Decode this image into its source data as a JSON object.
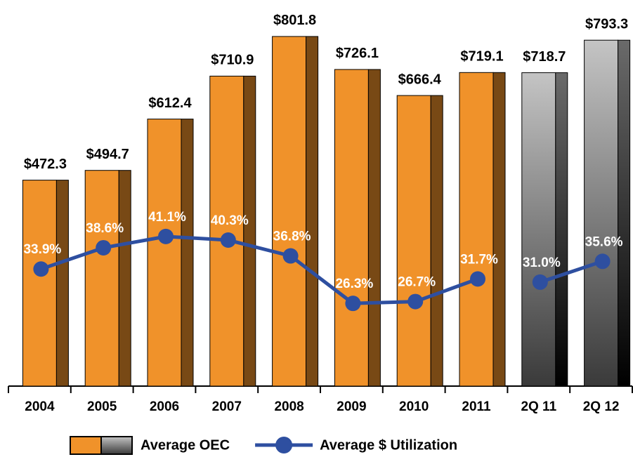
{
  "chart_data": {
    "type": "bar",
    "categories": [
      "2004",
      "2005",
      "2006",
      "2007",
      "2008",
      "2009",
      "2010",
      "2011",
      "2Q 11",
      "2Q 12"
    ],
    "ylim": [
      0,
      850
    ],
    "y2lim": [
      8,
      90
    ],
    "series": [
      {
        "name": "Average OEC",
        "type": "bar",
        "colors": [
          "#f0922a",
          "#f0922a",
          "#f0922a",
          "#f0922a",
          "#f0922a",
          "#f0922a",
          "#f0922a",
          "#f0922a",
          "#a6a6a6",
          "#a6a6a6"
        ],
        "values": [
          472.3,
          494.7,
          612.4,
          710.9,
          801.8,
          726.1,
          666.4,
          719.1,
          718.7,
          793.3
        ],
        "value_labels": [
          "$472.3",
          "$494.7",
          "$612.4",
          "$710.9",
          "$801.8",
          "$726.1",
          "$666.4",
          "$719.1",
          "$718.7",
          "$793.3"
        ]
      },
      {
        "name": "Average $ Utilization",
        "type": "line",
        "axis": "y2",
        "color": "#2e4fa0",
        "values": [
          33.9,
          38.6,
          41.1,
          40.3,
          36.8,
          26.3,
          26.7,
          31.7,
          31.0,
          35.6
        ],
        "value_labels": [
          "33.9%",
          "38.6%",
          "41.1%",
          "40.3%",
          "36.8%",
          "26.3%",
          "26.7%",
          "31.7%",
          "31.0%",
          "35.6%"
        ]
      }
    ]
  }
}
